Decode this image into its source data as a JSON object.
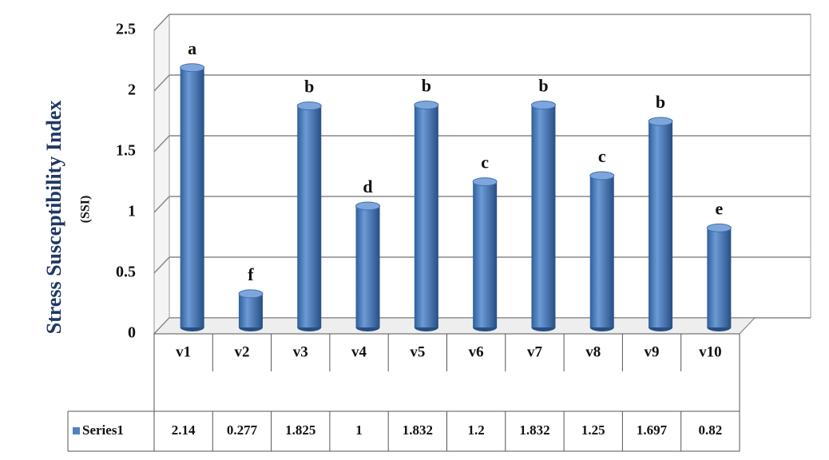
{
  "chart_data": {
    "type": "bar",
    "y_label": "Stress Susceptibility Index",
    "y_label_unit": "(SSI)",
    "categories": [
      "v1",
      "v2",
      "v3",
      "v4",
      "v5",
      "v6",
      "v7",
      "v8",
      "v9",
      "v10"
    ],
    "series": [
      {
        "name": "Series1",
        "color": "#4f81bd",
        "values": [
          2.14,
          0.277,
          1.825,
          1,
          1.832,
          1.2,
          1.832,
          1.25,
          1.697,
          0.82
        ]
      }
    ],
    "annotations": [
      "a",
      "f",
      "b",
      "d",
      "b",
      "c",
      "b",
      "c",
      "b",
      "e"
    ],
    "ylim": [
      0,
      2.5
    ],
    "yticks": [
      0,
      0.5,
      1,
      1.5,
      2,
      2.5
    ],
    "grid": true,
    "data_table": true
  }
}
